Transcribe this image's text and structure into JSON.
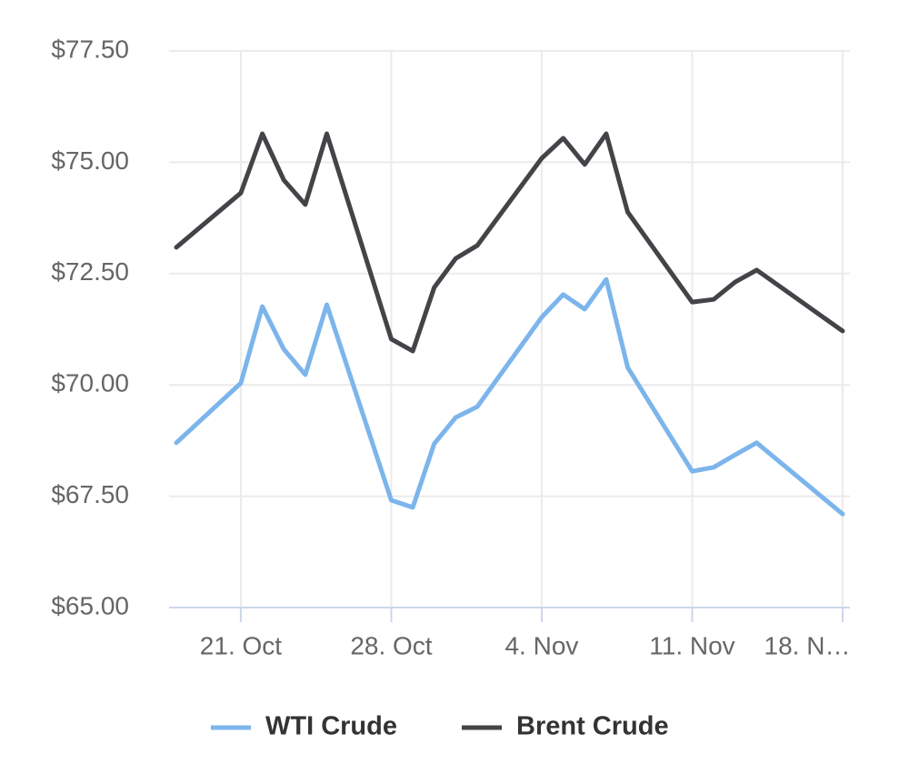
{
  "chart_data": {
    "type": "line",
    "x": [
      "18. Oct",
      "21. Oct",
      "22. Oct",
      "23. Oct",
      "24. Oct",
      "25. Oct",
      "28. Oct",
      "29. Oct",
      "30. Oct",
      "31. Oct",
      "1. Nov",
      "4. Nov",
      "5. Nov",
      "6. Nov",
      "7. Nov",
      "8. Nov",
      "11. Nov",
      "12. Nov",
      "13. Nov",
      "14. Nov",
      "18. Nov"
    ],
    "series": [
      {
        "name": "WTI Crude",
        "color": "#7cb5ec",
        "values": [
          68.7,
          70.04,
          71.76,
          70.8,
          70.23,
          71.8,
          67.41,
          67.25,
          68.68,
          69.27,
          69.51,
          71.52,
          72.03,
          71.7,
          72.37,
          70.39,
          68.06,
          68.15,
          68.43,
          68.7,
          67.1
        ]
      },
      {
        "name": "Brent Crude",
        "color": "#434348",
        "values": [
          73.09,
          74.31,
          75.64,
          74.6,
          74.05,
          75.64,
          71.03,
          70.76,
          72.19,
          72.84,
          73.13,
          75.09,
          75.54,
          74.95,
          75.64,
          73.88,
          71.86,
          71.92,
          72.31,
          72.58,
          71.21
        ]
      }
    ],
    "xlim": [
      "18. Oct",
      "18. Nov"
    ],
    "xticks": [
      "21. Oct",
      "28. Oct",
      "4. Nov",
      "11. Nov",
      {
        "value": "18. Nov",
        "label": "18. N…"
      }
    ],
    "ylim": [
      65,
      77.5
    ],
    "yticks": [
      {
        "value": 65,
        "label": "$65.00"
      },
      {
        "value": 67.5,
        "label": "$67.50"
      },
      {
        "value": 70,
        "label": "$70.00"
      },
      {
        "value": 72.5,
        "label": "$72.50"
      },
      {
        "value": 75,
        "label": "$75.00"
      },
      {
        "value": 77.5,
        "label": "$77.50"
      }
    ],
    "grid": true,
    "legend": "bottom"
  }
}
